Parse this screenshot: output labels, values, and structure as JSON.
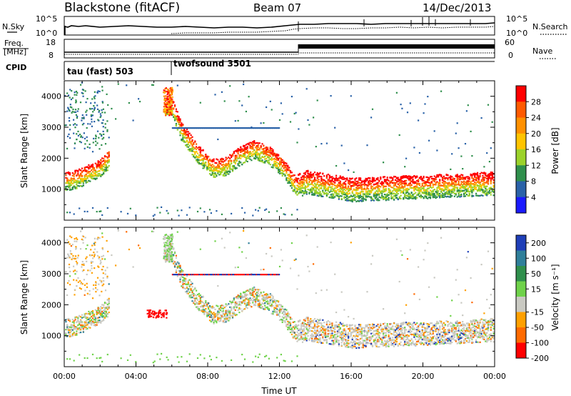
{
  "header": {
    "station": "Blackstone (fitACF)",
    "beam": "Beam 07",
    "date": "14/Dec/2013"
  },
  "top_panels": {
    "noise": {
      "left_label": "N.Sky",
      "right_label": "N.Search",
      "left_ticks": [
        "10^5",
        "10^0"
      ],
      "right_ticks": [
        "10^5",
        "10^0"
      ]
    },
    "freq": {
      "left_label_1": "Freq.",
      "left_label_2": "[MHz]",
      "left_ticks": [
        "18",
        "8"
      ],
      "right_label": "Nave",
      "right_ticks": [
        "60",
        "0"
      ]
    },
    "cpid": {
      "label": "CPID",
      "segments": [
        {
          "name": "tau (fast) 503",
          "start_hour": 0
        },
        {
          "name": "twofsound 3501",
          "start_hour": 6
        }
      ]
    }
  },
  "chart_data": [
    {
      "type": "heatmap",
      "panel": "power",
      "title": "",
      "xlabel": "Time UT",
      "ylabel": "Slant Range [km]",
      "xlim": [
        0,
        24
      ],
      "ylim": [
        0,
        4500
      ],
      "x_tick_labels": [
        "00:00",
        "04:00",
        "08:00",
        "12:00",
        "16:00",
        "20:00",
        "00:00"
      ],
      "y_tick_labels": [
        "1000",
        "2000",
        "3000",
        "4000"
      ],
      "colorbar": {
        "label": "Power [dB]",
        "tick_labels": [
          "28",
          "24",
          "20",
          "16",
          "12",
          "8",
          "4"
        ],
        "range": [
          0,
          30
        ],
        "colors": [
          "#ff0000",
          "#ff5a00",
          "#ff9000",
          "#ffc400",
          "#9bd22a",
          "#2f8f4c",
          "#2a62a8",
          "#1a1aff"
        ]
      },
      "echo_band_center_km": [
        [
          0.0,
          1250
        ],
        [
          0.7,
          1350
        ],
        [
          1.3,
          1500
        ],
        [
          1.9,
          1650
        ],
        [
          2.4,
          1950
        ],
        [
          5.9,
          3800
        ],
        [
          6.5,
          2900
        ],
        [
          7.5,
          2100
        ],
        [
          8.3,
          1700
        ],
        [
          9.0,
          1750
        ],
        [
          9.8,
          2100
        ],
        [
          10.6,
          2300
        ],
        [
          11.4,
          2100
        ],
        [
          12.2,
          1700
        ],
        [
          12.9,
          1100
        ],
        [
          13.5,
          1250
        ],
        [
          16.0,
          1000
        ],
        [
          18.0,
          1050
        ],
        [
          20.0,
          1100
        ],
        [
          22.0,
          1150
        ],
        [
          24.0,
          1200
        ]
      ]
    },
    {
      "type": "heatmap",
      "panel": "velocity",
      "title": "",
      "xlabel": "Time UT",
      "ylabel": "Slant Range [km]",
      "xlim": [
        0,
        24
      ],
      "ylim": [
        0,
        4500
      ],
      "x_tick_labels": [
        "00:00",
        "04:00",
        "08:00",
        "12:00",
        "16:00",
        "20:00",
        "00:00"
      ],
      "y_tick_labels": [
        "1000",
        "2000",
        "3000",
        "4000"
      ],
      "colorbar": {
        "label": "Velocity [m s⁻¹]",
        "tick_labels": [
          "200",
          "100",
          "50",
          "15",
          "-15",
          "-50",
          "-100",
          "-200"
        ],
        "range": [
          -250,
          250
        ],
        "colors": [
          "#1f3fb8",
          "#2f7f9a",
          "#2f8f4c",
          "#6fd24a",
          "#c9c9c2",
          "#ffa000",
          "#ff6a00",
          "#ff0000"
        ]
      }
    }
  ]
}
